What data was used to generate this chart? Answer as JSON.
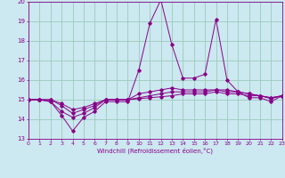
{
  "xlabel": "Windchill (Refroidissement éolien,°C)",
  "background_color": "#cce8f0",
  "grid_color": "#99ccbb",
  "line_color": "#880088",
  "x_values": [
    0,
    1,
    2,
    3,
    4,
    5,
    6,
    7,
    8,
    9,
    10,
    11,
    12,
    13,
    14,
    15,
    16,
    17,
    18,
    19,
    20,
    21,
    22,
    23
  ],
  "series1": [
    15.0,
    15.0,
    14.9,
    14.2,
    13.4,
    14.1,
    14.4,
    14.9,
    14.9,
    14.9,
    16.5,
    18.9,
    20.1,
    17.8,
    16.1,
    16.1,
    16.3,
    19.1,
    16.0,
    15.4,
    15.1,
    15.1,
    14.9,
    15.2
  ],
  "series2": [
    15.0,
    15.0,
    14.9,
    14.4,
    14.1,
    14.3,
    14.6,
    15.0,
    15.0,
    15.0,
    15.3,
    15.4,
    15.5,
    15.6,
    15.5,
    15.5,
    15.5,
    15.5,
    15.5,
    15.4,
    15.3,
    15.2,
    15.1,
    15.2
  ],
  "series3": [
    15.0,
    15.0,
    15.0,
    14.7,
    14.3,
    14.5,
    14.7,
    15.0,
    15.0,
    15.0,
    15.1,
    15.2,
    15.3,
    15.4,
    15.4,
    15.4,
    15.4,
    15.5,
    15.4,
    15.4,
    15.3,
    15.2,
    15.1,
    15.2
  ],
  "series4": [
    15.0,
    15.0,
    15.0,
    14.8,
    14.5,
    14.6,
    14.8,
    15.0,
    15.0,
    15.0,
    15.05,
    15.1,
    15.15,
    15.2,
    15.3,
    15.3,
    15.3,
    15.4,
    15.3,
    15.3,
    15.2,
    15.2,
    15.05,
    15.2
  ],
  "ylim": [
    13,
    20
  ],
  "xlim": [
    0,
    23
  ],
  "yticks": [
    13,
    14,
    15,
    16,
    17,
    18,
    19,
    20
  ],
  "xticks": [
    0,
    1,
    2,
    3,
    4,
    5,
    6,
    7,
    8,
    9,
    10,
    11,
    12,
    13,
    14,
    15,
    16,
    17,
    18,
    19,
    20,
    21,
    22,
    23
  ],
  "xtick_labels": [
    "0",
    "1",
    "2",
    "3",
    "4",
    "5",
    "6",
    "7",
    "8",
    "9",
    "10",
    "11",
    "12",
    "13",
    "14",
    "15",
    "16",
    "17",
    "18",
    "19",
    "20",
    "21",
    "22",
    "23"
  ]
}
